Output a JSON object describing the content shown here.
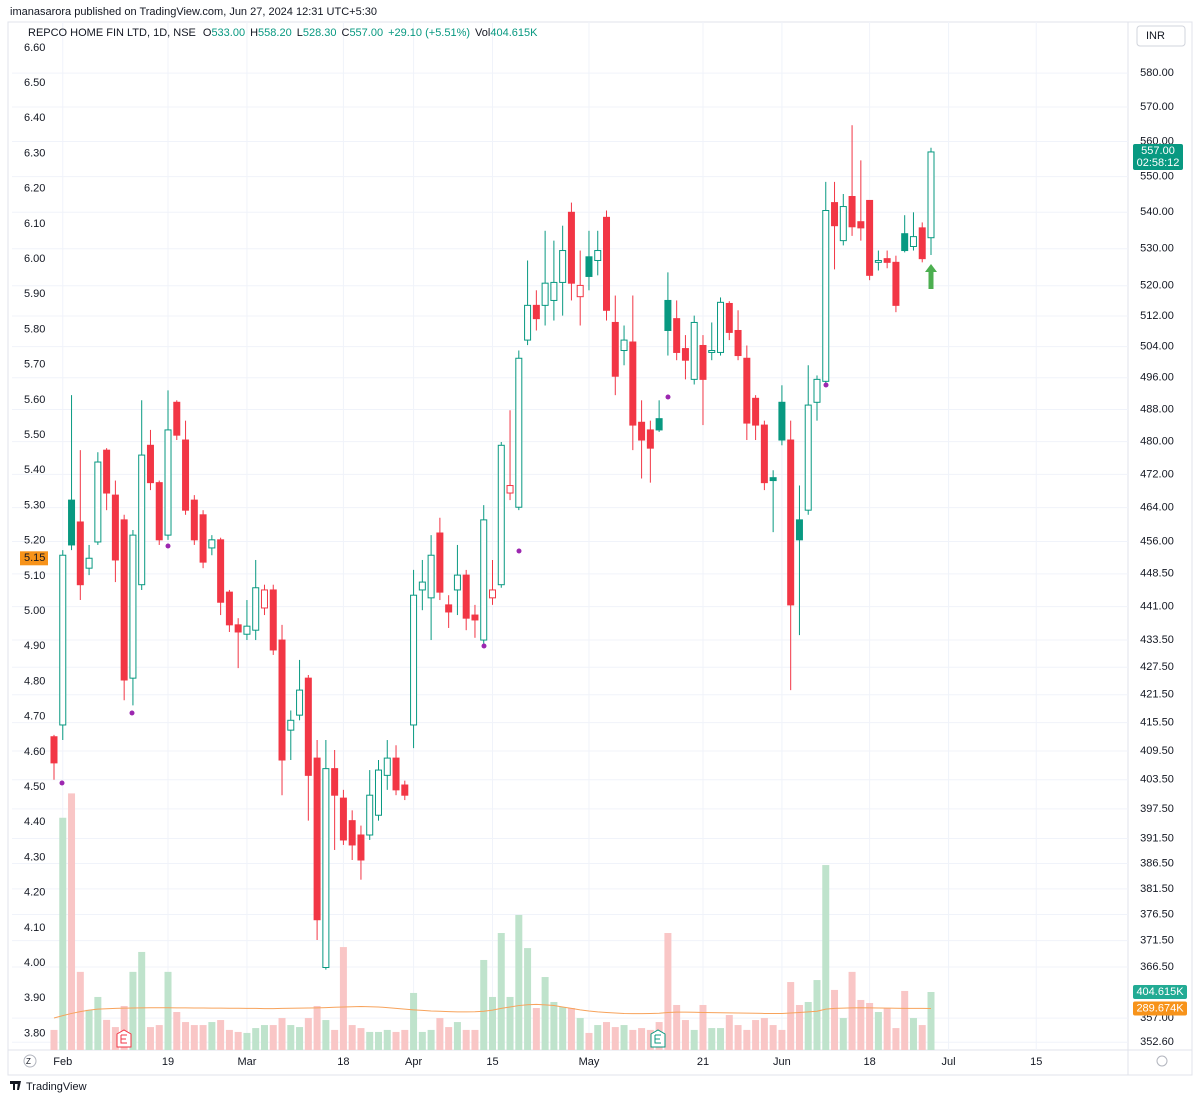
{
  "chart_data": {
    "type": "candlestick",
    "published": "imanasarora published on TradingView.com, Jun 27, 2024 12:31 UTC+5:30",
    "brand": "TradingView",
    "currency": "INR",
    "header": {
      "symbol": "REPCO HOME FIN LTD, 1D, NSE",
      "fields": [
        {
          "key": "O",
          "value": "533.00"
        },
        {
          "key": "H",
          "value": "558.20"
        },
        {
          "key": "L",
          "value": "528.30"
        },
        {
          "key": "C",
          "value": "557.00"
        }
      ],
      "change": "+29.10 (+5.51%)",
      "volume": {
        "key": "Vol",
        "value": "404.615K"
      }
    },
    "up_color": "#089981",
    "down_color": "#f23645",
    "log_scale": true,
    "grid": true,
    "categories": [
      null,
      "Feb",
      null,
      null,
      null,
      null,
      null,
      null,
      null,
      null,
      null,
      null,
      null,
      "19",
      null,
      null,
      null,
      null,
      null,
      null,
      null,
      null,
      "Mar",
      null,
      null,
      null,
      null,
      null,
      null,
      null,
      null,
      null,
      null,
      "18",
      null,
      null,
      null,
      null,
      null,
      null,
      null,
      "Apr",
      null,
      null,
      null,
      null,
      null,
      null,
      null,
      null,
      "15",
      null,
      null,
      null,
      null,
      null,
      null,
      null,
      null,
      null,
      null,
      "May",
      null,
      null,
      null,
      null,
      null,
      null,
      null,
      null,
      null,
      null,
      null,
      null,
      "21",
      null,
      null,
      null,
      null,
      null,
      null,
      null,
      null,
      "Jun",
      null,
      null,
      null,
      null,
      null,
      null,
      null,
      null,
      null,
      "18",
      null,
      null,
      null,
      null,
      null,
      null,
      null,
      null,
      "Jul",
      null,
      null,
      null,
      null,
      null,
      null,
      null,
      null,
      null,
      "15",
      null,
      null,
      null,
      null,
      null,
      null,
      null
    ],
    "open": [
      412.5,
      415.0,
      465.8,
      460.6,
      449.8,
      455.9,
      477.9,
      467.0,
      461.1,
      425.1,
      446.0,
      479.1,
      470.0,
      457.5,
      489.8,
      480.4,
      465.8,
      462.3,
      454.5,
      456.4,
      444.3,
      436.9,
      434.8,
      435.7,
      440.7,
      444.8,
      433.5,
      413.9,
      417.1,
      425.1,
      408.0,
      366.4,
      405.8,
      399.7,
      395.1,
      392.2,
      392.2,
      396.2,
      404.4,
      408.0,
      402.4,
      415.0,
      444.8,
      443.0,
      458.0,
      441.4,
      444.8,
      448.2,
      439.1,
      433.5,
      443.0,
      446.0,
      467.5,
      464.1,
      505.7,
      514.8,
      514.8,
      516.1,
      520.9,
      540.0,
      517.1,
      527.8,
      526.8,
      538.6,
      510.3,
      503.0,
      505.2,
      484.8,
      482.9,
      485.7,
      516.1,
      511.3,
      503.5,
      495.6,
      504.3,
      502.5,
      502.5,
      515.3,
      508.2,
      501.0,
      490.8,
      484.1,
      471.2,
      489.8,
      480.4,
      461.1,
      463.4,
      489.8,
      495.1,
      542.7,
      532.2,
      544.4,
      537.4,
      543.3,
      526.3,
      527.3,
      526.3,
      534.1,
      530.6,
      535.7,
      533,
      null,
      null,
      null,
      null,
      null,
      null,
      null,
      null,
      null,
      null,
      null,
      null,
      null,
      null,
      null,
      null,
      null,
      null,
      null
    ],
    "high": [
      412.9,
      454.0,
      491.6,
      477.9,
      455.2,
      477.4,
      478.4,
      470.5,
      462.3,
      458.7,
      490.3,
      482.9,
      470.5,
      492.8,
      490.3,
      485.2,
      467.0,
      463.4,
      457.5,
      456.9,
      444.8,
      438.4,
      442.5,
      451.7,
      446.0,
      446.0,
      436.9,
      418.1,
      429.1,
      425.8,
      411.8,
      411.8,
      409.7,
      401.4,
      397.2,
      394.1,
      405.5,
      407.6,
      411.8,
      410.7,
      403.3,
      449.4,
      451.7,
      457.5,
      461.6,
      443.6,
      455.2,
      449.4,
      441.4,
      464.6,
      451.7,
      479.9,
      487.8,
      503.0,
      526.8,
      518.8,
      534.9,
      532.2,
      536.3,
      542.7,
      529.5,
      534.9,
      534.9,
      540.5,
      517.4,
      509.5,
      517.4,
      490.3,
      485.2,
      490.3,
      523.6,
      516.1,
      507.0,
      512.1,
      507.0,
      510.3,
      516.9,
      515.9,
      513.5,
      504.3,
      491.6,
      485.2,
      473.0,
      494.1,
      485.2,
      469.3,
      499.2,
      496.6,
      548.5,
      548.5,
      545.1,
      564.7,
      554.6,
      543.3,
      529.5,
      529.5,
      528.1,
      539.2,
      540.0,
      537.2,
      558.2,
      null,
      null,
      null,
      null,
      null,
      null,
      null,
      null,
      null,
      null,
      null,
      null,
      null,
      null,
      null,
      null,
      null,
      null,
      null
    ],
    "low": [
      403.5,
      411.8,
      454.0,
      442.5,
      448.2,
      455.2,
      463.4,
      446.6,
      420.3,
      419.2,
      444.8,
      468.2,
      455.2,
      456.4,
      480.4,
      462.3,
      455.2,
      449.8,
      452.8,
      439.1,
      435.3,
      427.3,
      433.5,
      433.5,
      439.1,
      430.2,
      400.3,
      407.6,
      416.0,
      395.1,
      371.6,
      366.0,
      389.2,
      390.2,
      387.2,
      383.3,
      391.2,
      395.1,
      401.4,
      400.3,
      399.3,
      410.1,
      440.2,
      433.5,
      442.5,
      436.2,
      439.1,
      435.7,
      434.0,
      432.4,
      441.4,
      445.3,
      465.8,
      463.4,
      504.4,
      508.2,
      509.5,
      510.8,
      512.1,
      516.1,
      509.5,
      518.8,
      522.8,
      510.8,
      491.6,
      499.2,
      477.9,
      471.0,
      470.0,
      482.4,
      501.7,
      500.5,
      495.6,
      494.3,
      484.1,
      500.5,
      501.7,
      505.7,
      500.5,
      480.4,
      480.4,
      468.2,
      458.2,
      479.1,
      422.5,
      434.6,
      462.3,
      485.2,
      494.3,
      524.4,
      530.9,
      533.5,
      532.2,
      521.5,
      524.1,
      524.7,
      513.0,
      529.0,
      529.5,
      526.3,
      528.3,
      null,
      null,
      null,
      null,
      null,
      null,
      null,
      null,
      null,
      null,
      null,
      null,
      null,
      null,
      null,
      null,
      null,
      null,
      null
    ],
    "close": [
      407.0,
      452.8,
      455.2,
      446.0,
      452.1,
      475.0,
      467.5,
      451.7,
      424.7,
      457.5,
      476.7,
      470.0,
      456.4,
      482.9,
      481.6,
      463.4,
      456.4,
      451.2,
      456.4,
      442.0,
      436.9,
      435.3,
      436.6,
      445.3,
      444.8,
      431.3,
      407.6,
      416.0,
      422.5,
      404.4,
      375.5,
      405.8,
      400.3,
      391.2,
      390.2,
      387.2,
      400.3,
      405.5,
      408.0,
      401.4,
      400.3,
      443.6,
      446.6,
      452.8,
      444.3,
      439.8,
      448.2,
      438.4,
      438.0,
      461.1,
      444.8,
      479.1,
      469.3,
      501.0,
      514.8,
      511.3,
      520.7,
      520.9,
      529.5,
      520.7,
      520.1,
      522.5,
      529.5,
      513.5,
      496.4,
      505.7,
      484.1,
      480.4,
      478.4,
      482.9,
      508.2,
      502.5,
      500.5,
      510.3,
      495.6,
      503.0,
      515.6,
      507.7,
      501.7,
      484.6,
      484.1,
      470.0,
      470.5,
      480.4,
      441.4,
      456.4,
      489.1,
      495.6,
      540.5,
      536.3,
      541.6,
      536.0,
      535.7,
      522.8,
      526.8,
      526.3,
      514.8,
      529.5,
      533.3,
      527.3,
      557,
      null,
      null,
      null,
      null,
      null,
      null,
      null,
      null,
      null,
      null,
      null,
      null,
      null,
      null,
      null,
      null,
      null,
      null,
      null
    ],
    "ylim": [
      351.2,
      593
    ],
    "yticks": [
      {
        "value": 580,
        "label": "580.00"
      },
      {
        "value": 570,
        "label": "570.00"
      },
      {
        "value": 560,
        "label": "560.00"
      },
      {
        "value": 550,
        "label": "550.00"
      },
      {
        "value": 540,
        "label": "540.00"
      },
      {
        "value": 530,
        "label": "530.00"
      },
      {
        "value": 520,
        "label": "520.00"
      },
      {
        "value": 512,
        "label": "512.00"
      },
      {
        "value": 504,
        "label": "504.00"
      },
      {
        "value": 496,
        "label": "496.00"
      },
      {
        "value": 488,
        "label": "488.00"
      },
      {
        "value": 480,
        "label": "480.00"
      },
      {
        "value": 472,
        "label": "472.00"
      },
      {
        "value": 464,
        "label": "464.00"
      },
      {
        "value": 456,
        "label": "456.00"
      },
      {
        "value": 448.5,
        "label": "448.50"
      },
      {
        "value": 441,
        "label": "441.00"
      },
      {
        "value": 433.5,
        "label": "433.50"
      },
      {
        "value": 427.5,
        "label": "427.50"
      },
      {
        "value": 421.5,
        "label": "421.50"
      },
      {
        "value": 415.5,
        "label": "415.50"
      },
      {
        "value": 409.5,
        "label": "409.50"
      },
      {
        "value": 403.5,
        "label": "403.50"
      },
      {
        "value": 397.5,
        "label": "397.50"
      },
      {
        "value": 391.5,
        "label": "391.50"
      },
      {
        "value": 386.5,
        "label": "386.50"
      },
      {
        "value": 381.5,
        "label": "381.50"
      },
      {
        "value": 376.5,
        "label": "376.50"
      },
      {
        "value": 371.5,
        "label": "371.50"
      },
      {
        "value": 366.5,
        "label": "366.50"
      },
      {
        "value": 357,
        "label": "357.00"
      },
      {
        "value": 352.6,
        "label": "352.60"
      }
    ],
    "y2lim": [
      3.753,
      6.651
    ],
    "y2ticks": [
      {
        "value": 6.6,
        "label": "6.60"
      },
      {
        "value": 6.5,
        "label": "6.50"
      },
      {
        "value": 6.4,
        "label": "6.40"
      },
      {
        "value": 6.3,
        "label": "6.30"
      },
      {
        "value": 6.2,
        "label": "6.20"
      },
      {
        "value": 6.1,
        "label": "6.10"
      },
      {
        "value": 6.0,
        "label": "6.00"
      },
      {
        "value": 5.9,
        "label": "5.90"
      },
      {
        "value": 5.8,
        "label": "5.80"
      },
      {
        "value": 5.7,
        "label": "5.70"
      },
      {
        "value": 5.6,
        "label": "5.60"
      },
      {
        "value": 5.5,
        "label": "5.50"
      },
      {
        "value": 5.4,
        "label": "5.40"
      },
      {
        "value": 5.3,
        "label": "5.30"
      },
      {
        "value": 5.2,
        "label": "5.20"
      },
      {
        "value": 5.1,
        "label": "5.10"
      },
      {
        "value": 5.0,
        "label": "5.00"
      },
      {
        "value": 4.9,
        "label": "4.90"
      },
      {
        "value": 4.8,
        "label": "4.80"
      },
      {
        "value": 4.7,
        "label": "4.70"
      },
      {
        "value": 4.6,
        "label": "4.60"
      },
      {
        "value": 4.5,
        "label": "4.50"
      },
      {
        "value": 4.4,
        "label": "4.40"
      },
      {
        "value": 4.3,
        "label": "4.30"
      },
      {
        "value": 4.2,
        "label": "4.20"
      },
      {
        "value": 4.1,
        "label": "4.10"
      },
      {
        "value": 4.0,
        "label": "4.00"
      },
      {
        "value": 3.9,
        "label": "3.90"
      },
      {
        "value": 3.8,
        "label": "3.80"
      }
    ],
    "y2_marker": {
      "value": 5.15,
      "label": "5.15",
      "color": "#f7931a"
    },
    "last_price": {
      "value": 557,
      "label": "557.00",
      "countdown": "02:58:12"
    },
    "volume": {
      "ylim": [
        0,
        7115000
      ],
      "up_color": "#bfe3cc",
      "down_color": "#f9c6c6",
      "values": [
        140000,
        1620000,
        1790000,
        545000,
        280000,
        370000,
        210000,
        160000,
        307000,
        545000,
        684000,
        160000,
        174000,
        545000,
        265000,
        195000,
        174000,
        174000,
        195000,
        209000,
        140000,
        126000,
        119000,
        153000,
        174000,
        174000,
        223000,
        174000,
        160000,
        223000,
        307000,
        209000,
        140000,
        718000,
        174000,
        153000,
        126000,
        126000,
        140000,
        126000,
        140000,
        398000,
        126000,
        140000,
        223000,
        160000,
        195000,
        140000,
        140000,
        628000,
        370000,
        816000,
        370000,
        942000,
        711000,
        293000,
        509000,
        335000,
        300000,
        293000,
        223000,
        119000,
        174000,
        195000,
        160000,
        174000,
        140000,
        153000,
        140000,
        195000,
        816000,
        314000,
        209000,
        140000,
        314000,
        153000,
        153000,
        244000,
        174000,
        140000,
        209000,
        223000,
        174000,
        140000,
        474000,
        314000,
        335000,
        488000,
        1290000,
        419000,
        223000,
        545000,
        349000,
        328000,
        265000,
        293000,
        153000,
        412000,
        223000,
        174000,
        404615,
        null,
        null,
        null,
        null,
        null,
        null,
        null,
        null,
        null,
        null,
        null,
        null,
        null,
        null,
        null,
        null,
        null,
        null,
        null
      ],
      "last_label": "404.615K",
      "label_color": "#22ab94"
    },
    "volume_ma": {
      "color": "#f7a35c",
      "values": [
        223000,
        240000,
        255000,
        268000,
        278000,
        285000,
        288000,
        290000,
        292000,
        293000,
        294000,
        295000,
        295000,
        295000,
        294000,
        294000,
        293000,
        293000,
        292000,
        292000,
        291000,
        291000,
        290000,
        290000,
        289000,
        289000,
        290000,
        291000,
        292000,
        293000,
        294000,
        296000,
        298000,
        300000,
        302000,
        303000,
        302000,
        300000,
        296000,
        290000,
        285000,
        280000,
        276000,
        272000,
        270000,
        268000,
        266000,
        266000,
        267000,
        270000,
        278000,
        290000,
        300000,
        310000,
        316000,
        318000,
        315000,
        310000,
        300000,
        290000,
        280000,
        272000,
        266000,
        262000,
        258000,
        255000,
        254000,
        254000,
        255000,
        256000,
        262000,
        264000,
        264000,
        263000,
        262000,
        261000,
        260000,
        259000,
        258000,
        257000,
        256000,
        255000,
        255000,
        255000,
        258000,
        262000,
        266000,
        270000,
        285000,
        290000,
        292000,
        294000,
        295000,
        294000,
        293000,
        292000,
        291000,
        290000,
        290000,
        290000,
        289674,
        null,
        null,
        null,
        null,
        null,
        null,
        null,
        null,
        null,
        null,
        null,
        null,
        null,
        null,
        null,
        null,
        null,
        null,
        null
      ],
      "last_label": "289.674K",
      "label_color": "#f7931a"
    }
  }
}
